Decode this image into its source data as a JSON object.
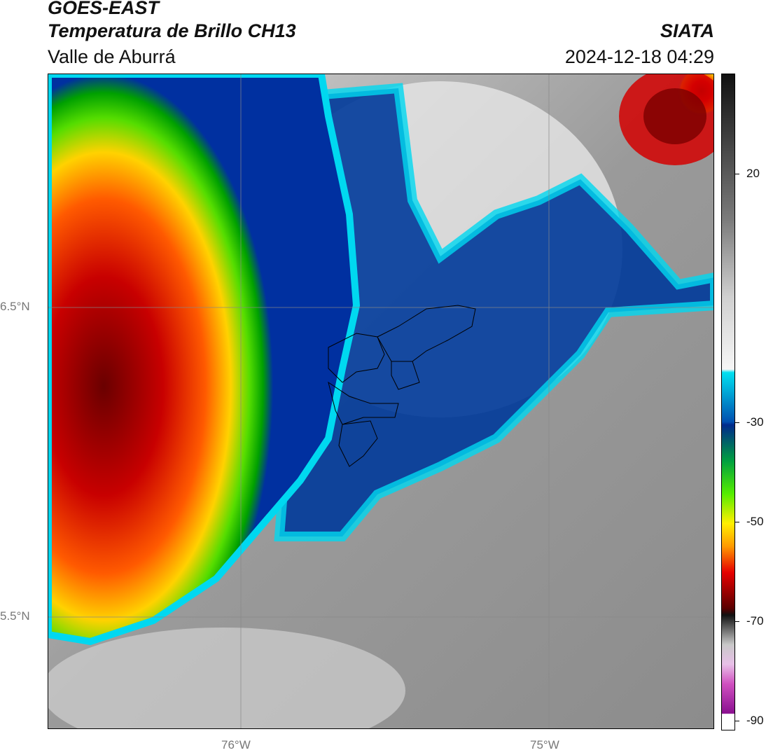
{
  "header": {
    "satellite": "GOES-EAST",
    "product": "Temperatura de Brillo CH13",
    "region": "Valle de Aburrá",
    "brand": "SIATA",
    "datetime": "2024-12-18 04:29"
  },
  "map": {
    "lat_labels": [
      "6.5°N",
      "5.5°N"
    ],
    "lon_labels": [
      "76°W",
      "75°W"
    ]
  },
  "colorbar": {
    "labels": [
      "20",
      "-30",
      "-50",
      "-70",
      "-90"
    ],
    "colors": {
      "black": "#000000",
      "red": "#d40000",
      "orange": "#ff7a00",
      "yellow": "#ffef00",
      "green": "#22cc00",
      "dark_blue": "#002a8c",
      "cyan": "#00e0f0",
      "white": "#f4f4f4",
      "gray": "#8a8a8a",
      "magenta": "#9a1a9a"
    }
  }
}
